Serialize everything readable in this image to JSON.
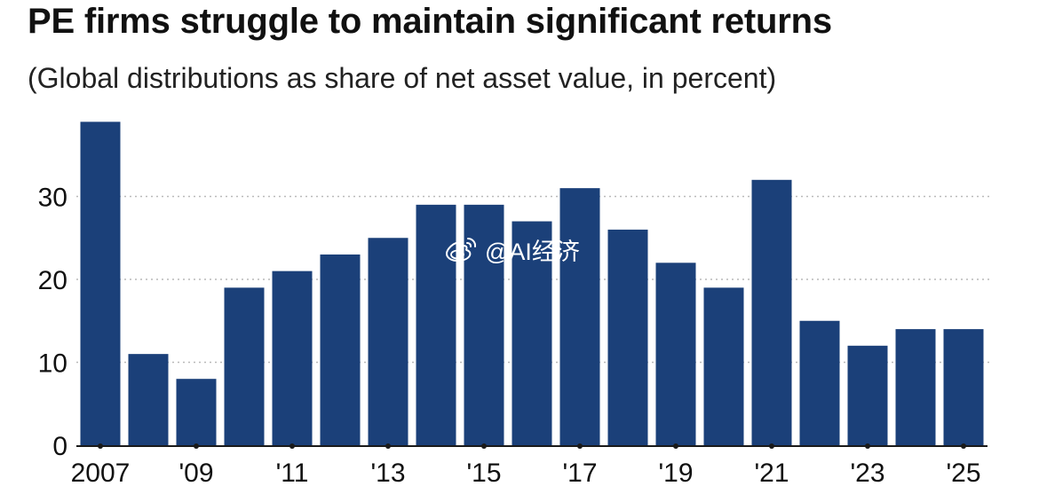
{
  "header": {
    "title": "PE firms struggle to maintain significant returns",
    "subtitle": "(Global distributions as share of net asset value, in percent)"
  },
  "watermark": {
    "text": "@AI经济",
    "icon": "weibo-icon"
  },
  "colors": {
    "bar": "#1b4079",
    "grid": "#b9b9b9",
    "axis": "#1a1a1a",
    "text": "#111111"
  },
  "chart_data": {
    "type": "bar",
    "title": "PE firms struggle to maintain significant returns",
    "subtitle": "(Global distributions as share of net asset value, in percent)",
    "categories": [
      "2007",
      "2008",
      "2009",
      "2010",
      "2011",
      "2012",
      "2013",
      "2014",
      "2015",
      "2016",
      "2017",
      "2018",
      "2019",
      "2020",
      "2021",
      "2022",
      "2023",
      "2024",
      "2025"
    ],
    "x_tick_labels": [
      "2007",
      "",
      "'09",
      "",
      "'11",
      "",
      "'13",
      "",
      "'15",
      "",
      "'17",
      "",
      "'19",
      "",
      "'21",
      "",
      "'23",
      "",
      "'25"
    ],
    "values": [
      39,
      11,
      8,
      19,
      21,
      23,
      25,
      29,
      29,
      27,
      31,
      26,
      22,
      19,
      32,
      15,
      12,
      14,
      14
    ],
    "ylim": [
      0,
      40
    ],
    "yticks": [
      0,
      10,
      20,
      30
    ],
    "grid": "horizontal dotted",
    "xlabel": "",
    "ylabel": ""
  }
}
